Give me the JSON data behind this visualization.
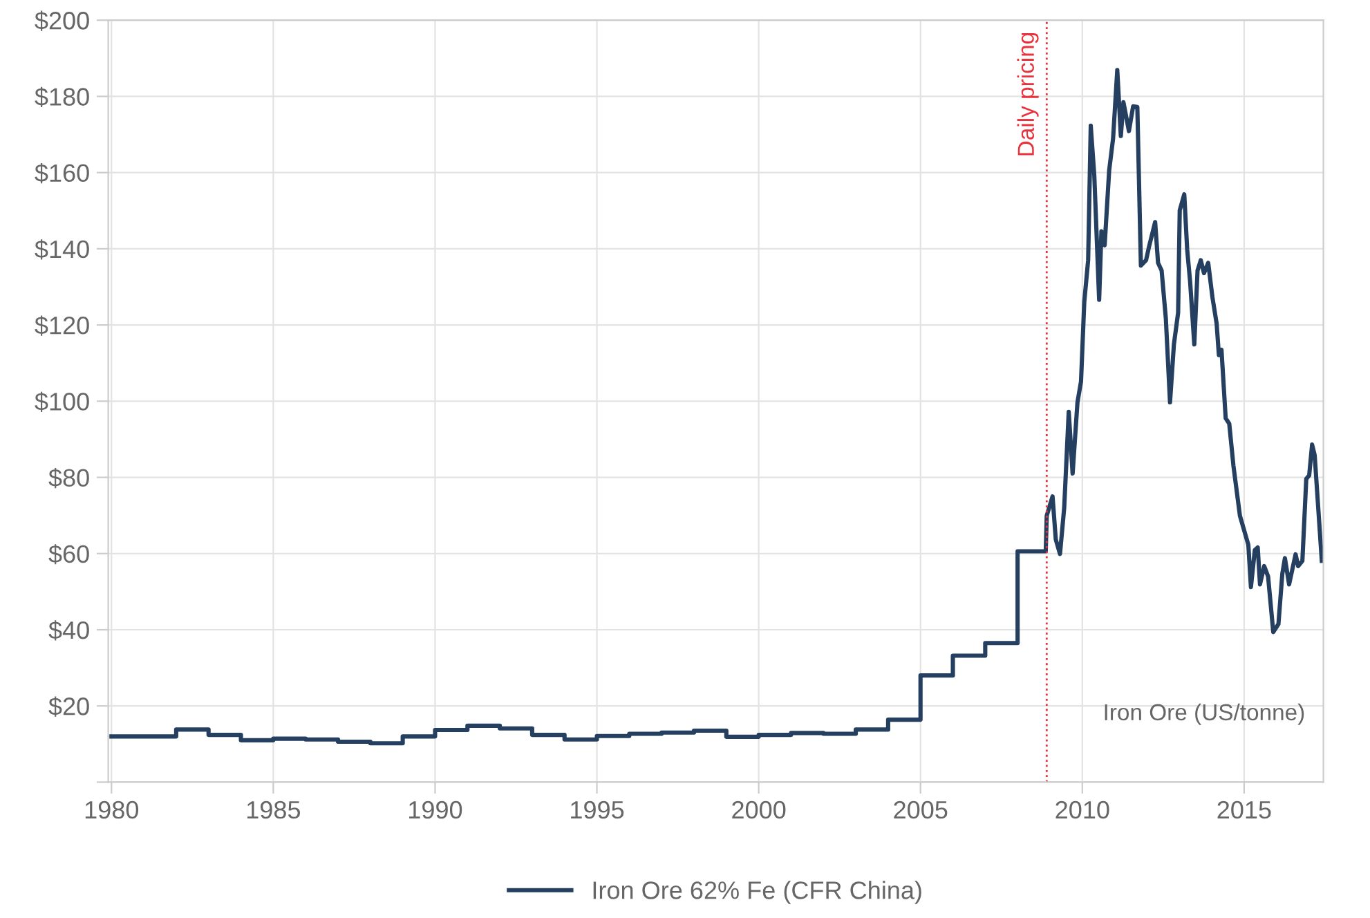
{
  "chart_data": {
    "type": "line",
    "x": [
      1980,
      1982,
      1982,
      1983,
      1983,
      1984,
      1984,
      1985,
      1985,
      1986,
      1986,
      1987,
      1987,
      1988,
      1988,
      1989,
      1989,
      1990,
      1990,
      1991,
      1991,
      1992,
      1992,
      1993,
      1993,
      1994,
      1994,
      1995,
      1995,
      1996,
      1996,
      1997,
      1997,
      1998,
      1998,
      1999,
      1999,
      2000,
      2000,
      2001,
      2001,
      2002,
      2002,
      2003,
      2003,
      2004,
      2004,
      2005,
      2005,
      2006,
      2006,
      2007,
      2007,
      2008,
      2008,
      2008.87,
      2008.9,
      2009.08,
      2009.18,
      2009.31,
      2009.44,
      2009.58,
      2009.7,
      2009.85,
      2009.96,
      2010.06,
      2010.18,
      2010.26,
      2010.37,
      2010.52,
      2010.59,
      2010.69,
      2010.83,
      2010.95,
      2011.08,
      2011.19,
      2011.27,
      2011.44,
      2011.57,
      2011.7,
      2011.81,
      2011.97,
      2012.06,
      2012.25,
      2012.34,
      2012.45,
      2012.58,
      2012.71,
      2012.83,
      2012.96,
      2013.01,
      2013.15,
      2013.24,
      2013.33,
      2013.46,
      2013.56,
      2013.66,
      2013.76,
      2013.89,
      2014.02,
      2014.15,
      2014.22,
      2014.3,
      2014.43,
      2014.54,
      2014.67,
      2014.87,
      2015.13,
      2015.21,
      2015.33,
      2015.42,
      2015.49,
      2015.62,
      2015.74,
      2015.9,
      2016.06,
      2016.18,
      2016.26,
      2016.39,
      2016.59,
      2016.67,
      2016.8,
      2016.92,
      2017.01,
      2017.1,
      2017.18,
      2017.4
    ],
    "series": [
      {
        "name": "Iron Ore 62% Fe (CFR China)",
        "color": "#243f60",
        "values": [
          12,
          12,
          13.8,
          13.8,
          12.4,
          12.4,
          11.0,
          11.0,
          11.4,
          11.4,
          11.2,
          11.2,
          10.6,
          10.6,
          10.2,
          10.2,
          12.0,
          12.0,
          13.7,
          13.7,
          14.8,
          14.8,
          14.1,
          14.1,
          12.4,
          12.4,
          11.2,
          11.2,
          12.1,
          12.1,
          12.7,
          12.7,
          13.0,
          13.0,
          13.5,
          13.5,
          11.9,
          11.9,
          12.4,
          12.4,
          12.9,
          12.9,
          12.7,
          12.7,
          13.8,
          13.8,
          16.4,
          16.4,
          28.0,
          28.0,
          33.2,
          33.2,
          36.5,
          36.5,
          60.6,
          60.6,
          69.9,
          75.0,
          63.7,
          59.9,
          72,
          97.2,
          81.0,
          99.7,
          105.2,
          126,
          137,
          172.3,
          159.2,
          126.6,
          144.6,
          140.9,
          160.6,
          168.9,
          186.9,
          169.6,
          178.5,
          170.9,
          177.4,
          177.2,
          135.6,
          137,
          140.5,
          147,
          136.3,
          134.3,
          121.8,
          99.7,
          114.9,
          123.2,
          150.1,
          154.3,
          139.8,
          131.5,
          114.9,
          134.3,
          137,
          133.6,
          136.3,
          127.3,
          120.4,
          112.1,
          113.5,
          95.5,
          94.1,
          83,
          69.9,
          62.3,
          51.2,
          60.9,
          61.6,
          51.9,
          56.7,
          54,
          39.4,
          41.5,
          54.7,
          58.8,
          51.9,
          59.8,
          56.7,
          58.1,
          79.6,
          80.5,
          88.6,
          85.8,
          58.1
        ]
      }
    ],
    "xlim": [
      1979.9,
      2017.45
    ],
    "xticks": [
      1980,
      1985,
      1990,
      1995,
      2000,
      2005,
      2010,
      2015
    ],
    "ylim": [
      0,
      200
    ],
    "yticks": [
      {
        "value": 0,
        "label": null
      },
      {
        "value": 20,
        "label": "$20"
      },
      {
        "value": 40,
        "label": "$40"
      },
      {
        "value": 60,
        "label": "$60"
      },
      {
        "value": 80,
        "label": "$80"
      },
      {
        "value": 100,
        "label": "$100"
      },
      {
        "value": 120,
        "label": "$120"
      },
      {
        "value": 140,
        "label": "$140"
      },
      {
        "value": 160,
        "label": "$160"
      },
      {
        "value": 180,
        "label": "$180"
      },
      {
        "value": 200,
        "label": "$200"
      }
    ],
    "ref_lines": [
      {
        "axis": "x",
        "value": 2008.9,
        "label": "Daily pricing",
        "color": "#e8323c",
        "line_style": "dotted"
      }
    ],
    "annotations": [
      "Iron Ore (US/tonne)"
    ],
    "grid": true,
    "legend": "bottom",
    "marker": "none",
    "line_style": "solid"
  }
}
